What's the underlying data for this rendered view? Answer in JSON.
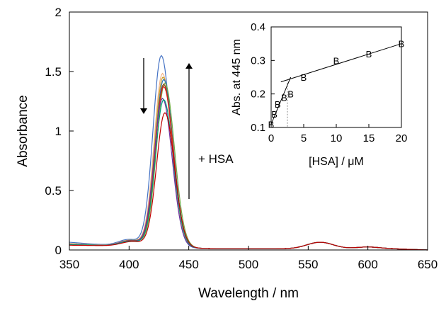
{
  "chart_data": [
    {
      "id": "main",
      "type": "line",
      "title": "",
      "xlabel": "Wavelength / nm",
      "ylabel": "Absorbance",
      "xlim": [
        350,
        650
      ],
      "ylim": [
        0,
        2
      ],
      "xticks": [
        350,
        400,
        450,
        500,
        550,
        600,
        650
      ],
      "yticks": [
        0,
        0.5,
        1,
        1.5,
        2
      ],
      "ytick_labels": [
        "0",
        "0.5",
        "1",
        "1.5",
        "2"
      ],
      "grid": false,
      "annotation": "+ HSA",
      "series": [
        {
          "color": "#4472c4",
          "peak": 1.61,
          "center": 427,
          "bg": 0.065
        },
        {
          "color": "#f4b183",
          "peak": 1.46,
          "center": 428,
          "bg": 0.055
        },
        {
          "color": "#c9a227",
          "peak": 1.43,
          "center": 428.5,
          "bg": 0.05
        },
        {
          "color": "#2e75b6",
          "peak": 1.41,
          "center": 429,
          "bg": 0.05
        },
        {
          "color": "#70ad47",
          "peak": 1.38,
          "center": 430,
          "bg": 0.048
        },
        {
          "color": "#8b4513",
          "peak": 1.37,
          "center": 429,
          "bg": 0.045
        },
        {
          "color": "#e0201b",
          "peak": 1.35,
          "center": 429,
          "bg": 0.045
        },
        {
          "color": "#7030a0",
          "peak": 1.25,
          "center": 428,
          "bg": 0.045
        },
        {
          "color": "#00a07a",
          "peak": 1.24,
          "center": 429,
          "bg": 0.045
        },
        {
          "color": "#c00000",
          "peak": 1.13,
          "center": 430,
          "bg": 0.04
        }
      ]
    },
    {
      "id": "inset",
      "type": "scatter",
      "title": "",
      "xlabel": "[HSA] / μM",
      "ylabel": "Abs. at 445 nm",
      "xlim": [
        0,
        20
      ],
      "ylim": [
        0.1,
        0.4
      ],
      "xticks": [
        0,
        5,
        10,
        15,
        20
      ],
      "yticks": [
        0.1,
        0.2,
        0.3,
        0.4
      ],
      "ytick_labels": [
        "0.1",
        "0.2",
        "0.3",
        "0.4"
      ],
      "marker": "B",
      "points": [
        {
          "x": 0,
          "y": 0.11
        },
        {
          "x": 0.5,
          "y": 0.14
        },
        {
          "x": 1,
          "y": 0.17
        },
        {
          "x": 2,
          "y": 0.19
        },
        {
          "x": 3,
          "y": 0.2
        },
        {
          "x": 5,
          "y": 0.25
        },
        {
          "x": 10,
          "y": 0.3
        },
        {
          "x": 15,
          "y": 0.32
        },
        {
          "x": 20,
          "y": 0.35
        }
      ],
      "fit_lines": [
        {
          "x": [
            0,
            3
          ],
          "y": [
            0.11,
            0.25
          ]
        },
        {
          "x": [
            1.5,
            20
          ],
          "y": [
            0.236,
            0.35
          ]
        }
      ],
      "intersection_x": 2.5
    }
  ]
}
